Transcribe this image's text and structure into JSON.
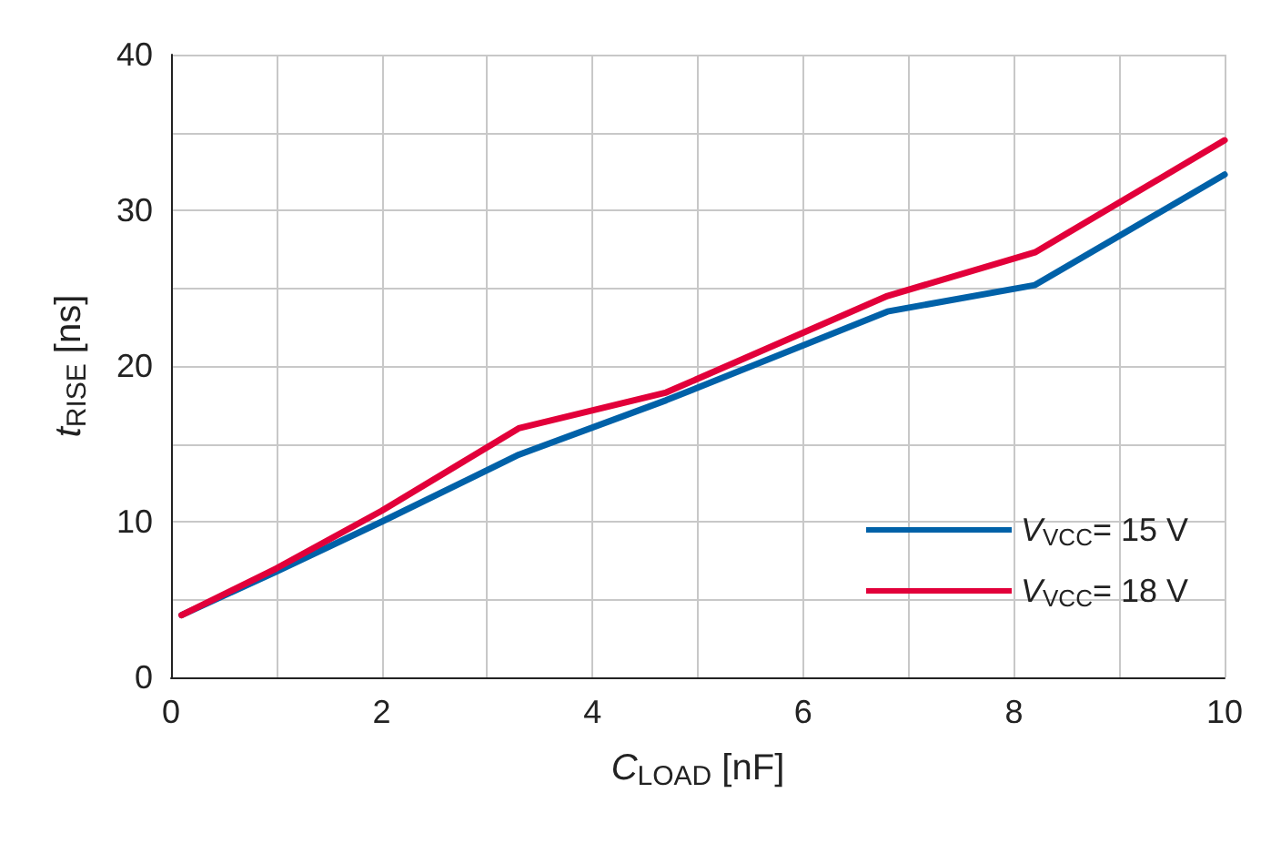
{
  "chart_data": {
    "type": "line",
    "xlabel": "C$_{LOAD}$ [nF]",
    "ylabel": "t$_{RISE}$ [ns]",
    "x": [
      0.1,
      1,
      2,
      3.3,
      4.7,
      6.8,
      8.2,
      10
    ],
    "series": [
      {
        "name": "V$_{VCC}$= 15 V",
        "color": "#0061a8",
        "values": [
          4,
          6.8,
          10,
          14.3,
          17.8,
          23.5,
          25.2,
          32.3
        ]
      },
      {
        "name": "V$_{VCC}$= 18 V",
        "color": "#e2003a",
        "values": [
          4,
          7,
          10.7,
          16,
          18.3,
          24.5,
          27.3,
          34.5
        ]
      }
    ],
    "xlim": [
      0,
      10
    ],
    "xticks": [
      0,
      {
        "value": 1,
        "label": null
      },
      2,
      {
        "value": 3,
        "label": null
      },
      4,
      {
        "value": 5,
        "label": null
      },
      6,
      {
        "value": 7,
        "label": null
      },
      8,
      {
        "value": 9,
        "label": null
      },
      10
    ],
    "ylim": [
      0,
      40
    ],
    "yticks": [
      0,
      {
        "value": 5,
        "label": null
      },
      10,
      {
        "value": 15,
        "label": null
      },
      20,
      {
        "value": 25,
        "label": null
      },
      30,
      {
        "value": 35,
        "label": null
      },
      40
    ],
    "grid": true,
    "legend": "bottom right",
    "marker": "none",
    "line_style": "solid"
  }
}
